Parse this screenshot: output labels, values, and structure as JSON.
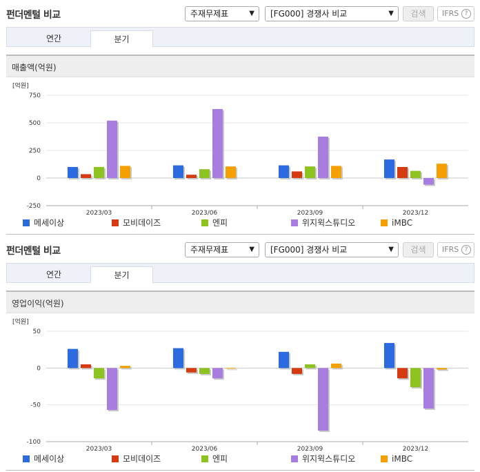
{
  "panels": [
    {
      "title": "펀더멘털 비교",
      "select_type": "주재무제표",
      "select_compare": "[FG000] 경쟁사 비교",
      "search_label": "검색",
      "ifrs_label": "IFRS",
      "help_glyph": "?",
      "tabs": [
        "연간",
        "분기"
      ],
      "active_tab": "분기",
      "chart_title": "매출액(억원)"
    },
    {
      "title": "펀더멘털 비교",
      "select_type": "주재무제표",
      "select_compare": "[FG000] 경쟁사 비교",
      "search_label": "검색",
      "ifrs_label": "IFRS",
      "help_glyph": "?",
      "tabs": [
        "연간",
        "분기"
      ],
      "active_tab": "분기",
      "chart_title": "영업이익(억원)"
    }
  ],
  "chart_data": [
    {
      "type": "bar",
      "title": "매출액(억원)",
      "ylabel": "[억원]",
      "ylim": [
        -250,
        750
      ],
      "yticks": [
        750,
        500,
        250,
        0,
        -250
      ],
      "grid": true,
      "legend": "bottom",
      "categories": [
        "2023/03",
        "2023/06",
        "2023/09",
        "2023/12"
      ],
      "series": [
        {
          "name": "메세이상",
          "color": "#2b6bdf",
          "values": [
            100,
            115,
            115,
            168
          ]
        },
        {
          "name": "모비데이즈",
          "color": "#d53a10",
          "values": [
            35,
            30,
            60,
            100
          ]
        },
        {
          "name": "엔피",
          "color": "#8cc320",
          "values": [
            100,
            80,
            105,
            65
          ]
        },
        {
          "name": "위지윅스튜디오",
          "color": "#a77ee0",
          "values": [
            520,
            625,
            375,
            -60
          ]
        },
        {
          "name": "iMBC",
          "color": "#f5a000",
          "values": [
            110,
            105,
            110,
            130
          ]
        }
      ]
    },
    {
      "type": "bar",
      "title": "영업이익(억원)",
      "ylabel": "[억원]",
      "ylim": [
        -100,
        50
      ],
      "yticks": [
        50,
        0,
        -50,
        -100
      ],
      "grid": true,
      "legend": "bottom",
      "categories": [
        "2023/03",
        "2023/06",
        "2023/09",
        "2023/12"
      ],
      "series": [
        {
          "name": "메세이상",
          "color": "#2b6bdf",
          "values": [
            26,
            27,
            22,
            34
          ]
        },
        {
          "name": "모비데이즈",
          "color": "#d53a10",
          "values": [
            5,
            -6,
            -8,
            -14
          ]
        },
        {
          "name": "엔피",
          "color": "#8cc320",
          "values": [
            -14,
            -8,
            5,
            -26
          ]
        },
        {
          "name": "위지윅스튜디오",
          "color": "#a77ee0",
          "values": [
            -57,
            -14,
            -85,
            -55
          ]
        },
        {
          "name": "iMBC",
          "color": "#f5a000",
          "values": [
            3,
            0,
            6,
            -2
          ]
        }
      ]
    }
  ]
}
